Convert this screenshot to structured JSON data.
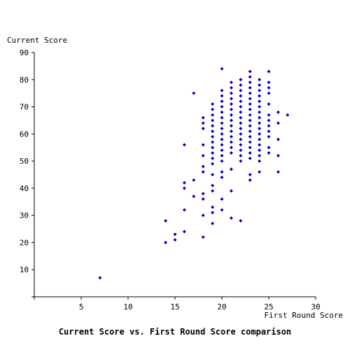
{
  "chart_data": {
    "type": "scatter",
    "title": "Current Score vs. First Round Score comparison",
    "xlabel": "First Round Score",
    "ylabel": "Current Score",
    "xlim": [
      0,
      30
    ],
    "ylim": [
      0,
      90
    ],
    "xticks": [
      5,
      10,
      15,
      20,
      25,
      30
    ],
    "yticks": [
      10,
      20,
      30,
      40,
      50,
      60,
      70,
      80,
      90
    ],
    "grid": false,
    "marker_color": "#0000cc",
    "series": [
      {
        "points": [
          [
            7,
            7
          ],
          [
            14,
            20
          ],
          [
            14,
            28
          ],
          [
            15,
            21
          ],
          [
            15,
            23
          ],
          [
            16,
            24
          ],
          [
            16,
            32
          ],
          [
            16,
            40
          ],
          [
            16,
            42
          ],
          [
            16,
            56
          ],
          [
            17,
            37
          ],
          [
            17,
            43
          ],
          [
            17,
            75
          ],
          [
            18,
            22
          ],
          [
            18,
            30
          ],
          [
            18,
            36
          ],
          [
            18,
            38
          ],
          [
            18,
            46
          ],
          [
            18,
            48
          ],
          [
            18,
            52
          ],
          [
            18,
            56
          ],
          [
            18,
            62
          ],
          [
            18,
            64
          ],
          [
            18,
            66
          ],
          [
            19,
            27
          ],
          [
            19,
            31
          ],
          [
            19,
            33
          ],
          [
            19,
            39
          ],
          [
            19,
            41
          ],
          [
            19,
            45
          ],
          [
            19,
            49
          ],
          [
            19,
            51
          ],
          [
            19,
            53
          ],
          [
            19,
            55
          ],
          [
            19,
            57
          ],
          [
            19,
            59
          ],
          [
            19,
            61
          ],
          [
            19,
            63
          ],
          [
            19,
            65
          ],
          [
            19,
            67
          ],
          [
            19,
            69
          ],
          [
            19,
            71
          ],
          [
            20,
            32
          ],
          [
            20,
            36
          ],
          [
            20,
            44
          ],
          [
            20,
            46
          ],
          [
            20,
            50
          ],
          [
            20,
            52
          ],
          [
            20,
            54
          ],
          [
            20,
            56
          ],
          [
            20,
            58
          ],
          [
            20,
            60
          ],
          [
            20,
            62
          ],
          [
            20,
            64
          ],
          [
            20,
            66
          ],
          [
            20,
            68
          ],
          [
            20,
            70
          ],
          [
            20,
            72
          ],
          [
            20,
            74
          ],
          [
            20,
            76
          ],
          [
            20,
            84
          ],
          [
            21,
            29
          ],
          [
            21,
            39
          ],
          [
            21,
            47
          ],
          [
            21,
            53
          ],
          [
            21,
            55
          ],
          [
            21,
            57
          ],
          [
            21,
            59
          ],
          [
            21,
            61
          ],
          [
            21,
            63
          ],
          [
            21,
            65
          ],
          [
            21,
            67
          ],
          [
            21,
            69
          ],
          [
            21,
            71
          ],
          [
            21,
            73
          ],
          [
            21,
            75
          ],
          [
            21,
            77
          ],
          [
            21,
            79
          ],
          [
            22,
            28
          ],
          [
            22,
            50
          ],
          [
            22,
            52
          ],
          [
            22,
            54
          ],
          [
            22,
            56
          ],
          [
            22,
            58
          ],
          [
            22,
            60
          ],
          [
            22,
            62
          ],
          [
            22,
            64
          ],
          [
            22,
            66
          ],
          [
            22,
            68
          ],
          [
            22,
            70
          ],
          [
            22,
            72
          ],
          [
            22,
            74
          ],
          [
            22,
            76
          ],
          [
            22,
            78
          ],
          [
            22,
            80
          ],
          [
            23,
            43
          ],
          [
            23,
            45
          ],
          [
            23,
            51
          ],
          [
            23,
            53
          ],
          [
            23,
            55
          ],
          [
            23,
            57
          ],
          [
            23,
            59
          ],
          [
            23,
            61
          ],
          [
            23,
            63
          ],
          [
            23,
            65
          ],
          [
            23,
            67
          ],
          [
            23,
            69
          ],
          [
            23,
            71
          ],
          [
            23,
            73
          ],
          [
            23,
            75
          ],
          [
            23,
            77
          ],
          [
            23,
            79
          ],
          [
            23,
            81
          ],
          [
            23,
            83
          ],
          [
            24,
            46
          ],
          [
            24,
            50
          ],
          [
            24,
            52
          ],
          [
            24,
            54
          ],
          [
            24,
            56
          ],
          [
            24,
            58
          ],
          [
            24,
            60
          ],
          [
            24,
            62
          ],
          [
            24,
            64
          ],
          [
            24,
            66
          ],
          [
            24,
            68
          ],
          [
            24,
            70
          ],
          [
            24,
            72
          ],
          [
            24,
            74
          ],
          [
            24,
            76
          ],
          [
            24,
            78
          ],
          [
            24,
            80
          ],
          [
            25,
            53
          ],
          [
            25,
            55
          ],
          [
            25,
            59
          ],
          [
            25,
            61
          ],
          [
            25,
            63
          ],
          [
            25,
            65
          ],
          [
            25,
            67
          ],
          [
            25,
            71
          ],
          [
            25,
            75
          ],
          [
            25,
            77
          ],
          [
            25,
            79
          ],
          [
            25,
            83
          ],
          [
            26,
            46
          ],
          [
            26,
            52
          ],
          [
            26,
            58
          ],
          [
            26,
            64
          ],
          [
            26,
            68
          ],
          [
            27,
            67
          ]
        ]
      }
    ]
  }
}
